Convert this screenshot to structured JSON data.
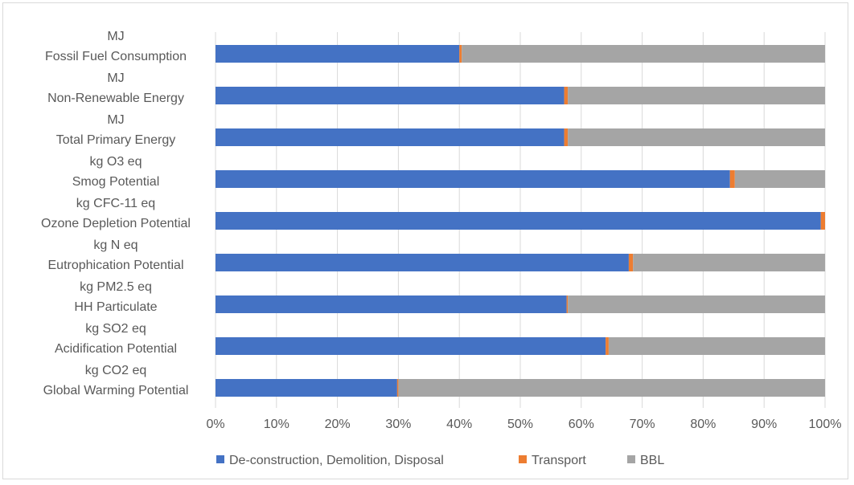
{
  "chart_data": {
    "type": "bar",
    "orientation": "horizontal",
    "stacked": "percent",
    "title": "",
    "xlabel": "",
    "ylabel": "",
    "xlim": [
      0,
      100
    ],
    "x_ticks": [
      "0%",
      "10%",
      "20%",
      "30%",
      "40%",
      "50%",
      "60%",
      "70%",
      "80%",
      "90%",
      "100%"
    ],
    "grid": true,
    "legend_position": "bottom",
    "categories": [
      {
        "unit": "MJ",
        "name": "Fossil Fuel Consumption"
      },
      {
        "unit": "MJ",
        "name": "Non-Renewable Energy"
      },
      {
        "unit": "MJ",
        "name": "Total Primary Energy"
      },
      {
        "unit": "kg O3 eq",
        "name": "Smog Potential"
      },
      {
        "unit": "kg CFC-11 eq",
        "name": "Ozone Depletion Potential"
      },
      {
        "unit": "kg N eq",
        "name": "Eutrophication Potential"
      },
      {
        "unit": "kg PM2.5 eq",
        "name": "HH Particulate"
      },
      {
        "unit": "kg SO2 eq",
        "name": "Acidification Potential"
      },
      {
        "unit": "kg CO2 eq",
        "name": "Global Warming Potential"
      }
    ],
    "series": [
      {
        "name": "De-construction, Demolition, Disposal",
        "color": "#4472c4",
        "values": [
          40.0,
          57.2,
          57.2,
          84.4,
          99.3,
          67.8,
          57.6,
          64.0,
          29.8
        ]
      },
      {
        "name": "Transport",
        "color": "#ed7d31",
        "values": [
          0.4,
          0.6,
          0.6,
          0.8,
          0.7,
          0.7,
          0.2,
          0.5,
          0.2
        ]
      },
      {
        "name": "BBL",
        "color": "#a5a5a5",
        "values": [
          59.6,
          42.2,
          42.2,
          14.8,
          0.0,
          31.5,
          42.2,
          35.5,
          70.0
        ]
      }
    ]
  }
}
